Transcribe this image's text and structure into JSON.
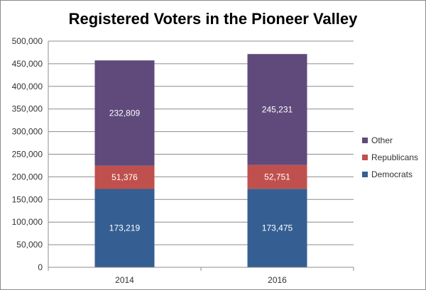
{
  "chart_data": {
    "type": "bar",
    "stacked": true,
    "title": "Registered Voters in the Pioneer Valley",
    "xlabel": "",
    "ylabel": "",
    "categories": [
      "2014",
      "2016"
    ],
    "series": [
      {
        "name": "Democrats",
        "values": [
          173219,
          173475
        ],
        "labels": [
          "173,219",
          "173,475"
        ],
        "color": "#355f92"
      },
      {
        "name": "Republicans",
        "values": [
          51376,
          52751
        ],
        "labels": [
          "51,376",
          "52,751"
        ],
        "color": "#c0504d"
      },
      {
        "name": "Other",
        "values": [
          232809,
          245231
        ],
        "labels": [
          "232,809",
          "245,231"
        ],
        "color": "#5f4a7b"
      }
    ],
    "ylim": [
      0,
      500000
    ],
    "y_ticks": [
      {
        "value": 0,
        "label": "0"
      },
      {
        "value": 50000,
        "label": "50,000"
      },
      {
        "value": 100000,
        "label": "100,000"
      },
      {
        "value": 150000,
        "label": "150,000"
      },
      {
        "value": 200000,
        "label": "200,000"
      },
      {
        "value": 250000,
        "label": "250,000"
      },
      {
        "value": 300000,
        "label": "300,000"
      },
      {
        "value": 350000,
        "label": "350,000"
      },
      {
        "value": 400000,
        "label": "400,000"
      },
      {
        "value": 450000,
        "label": "450,000"
      },
      {
        "value": 500000,
        "label": "500,000"
      }
    ],
    "grid": true,
    "legend_position": "right"
  }
}
